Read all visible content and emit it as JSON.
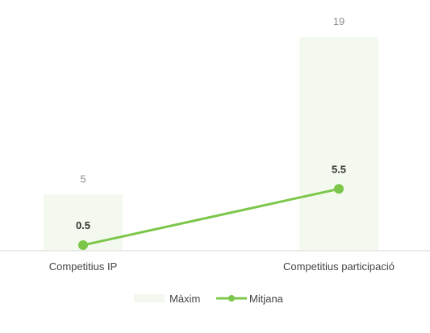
{
  "chart_data": {
    "type": "bar",
    "categories": [
      "Competitius IP",
      "Competitius participació"
    ],
    "series": [
      {
        "name": "Màxim",
        "kind": "bar",
        "values": [
          5,
          19
        ],
        "color": "#f3f9ef"
      },
      {
        "name": "Mitjana",
        "kind": "line",
        "values": [
          0.5,
          5.5
        ],
        "color": "#7cc74a"
      }
    ],
    "value_labels": {
      "max": [
        "5",
        "19"
      ],
      "mean": [
        "0.5",
        "5.5"
      ]
    },
    "ylim": [
      0,
      19
    ],
    "grid": false,
    "legend": "bottom-center",
    "axis_color": "#d9d9d9"
  }
}
